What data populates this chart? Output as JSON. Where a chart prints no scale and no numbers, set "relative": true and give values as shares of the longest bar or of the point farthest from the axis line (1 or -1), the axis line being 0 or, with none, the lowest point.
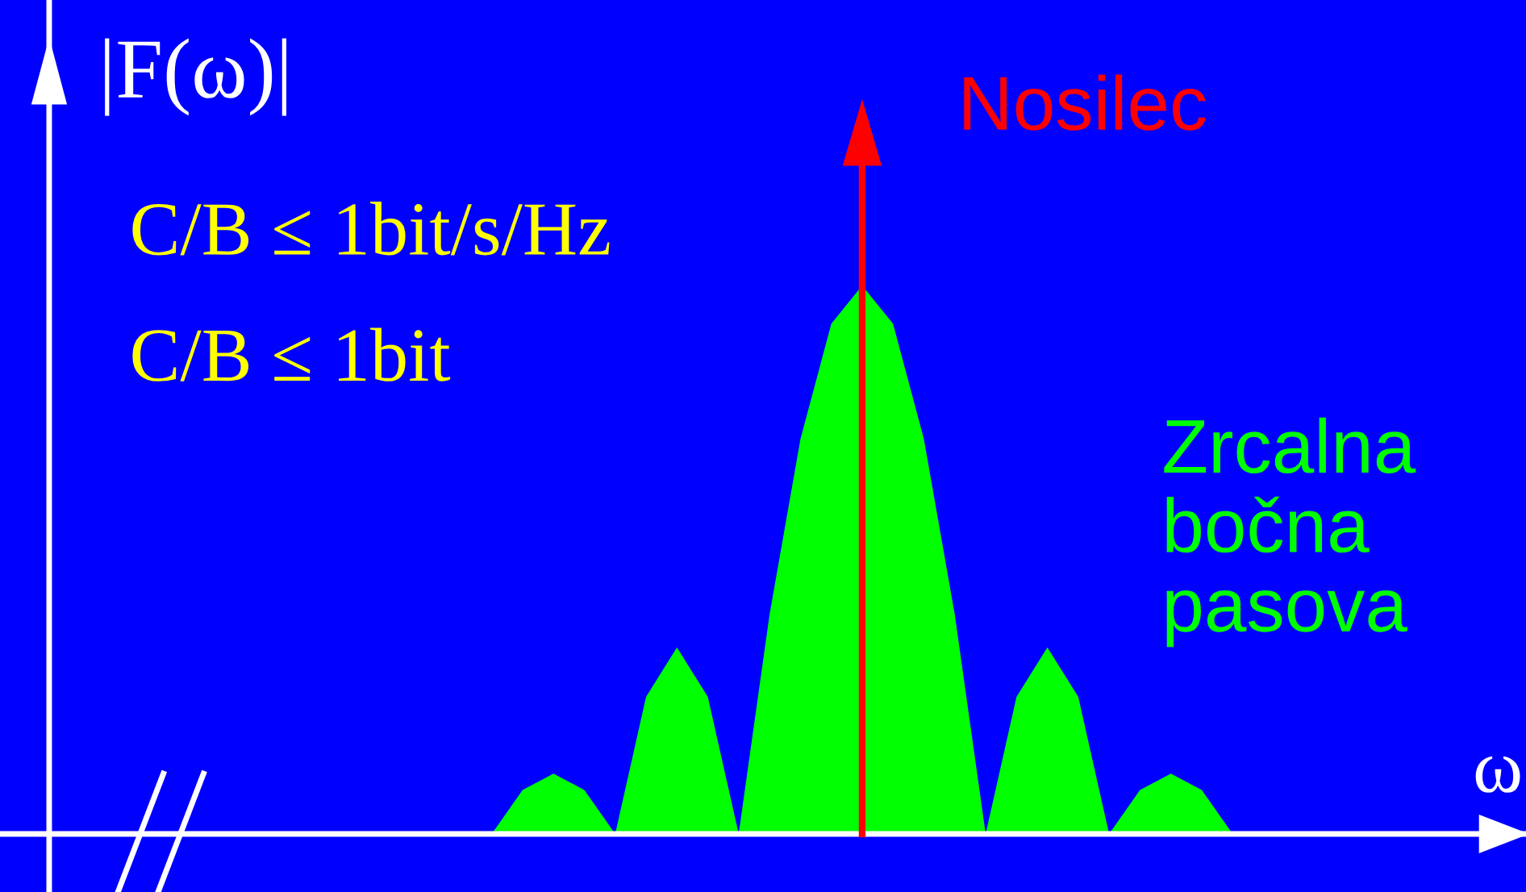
{
  "chart_data": {
    "type": "area",
    "relative": true,
    "ylabel": "|F(ω)|",
    "xlabel": "ω",
    "categories": [
      null,
      null,
      null,
      null,
      null,
      null,
      null,
      null,
      null,
      null,
      null,
      null,
      null,
      null,
      null,
      null,
      null,
      null,
      null,
      null,
      null,
      null,
      null,
      null,
      null
    ],
    "series": [
      {
        "color": "#00ff00",
        "values": [
          0,
          0.08,
          0.11,
          0.08,
          0,
          0.25,
          0.34,
          0.25,
          0,
          0.4,
          0.72,
          0.93,
          1,
          0.93,
          0.72,
          0.4,
          0,
          0.25,
          0.34,
          0.25,
          0,
          0.08,
          0.11,
          0.08,
          0
        ]
      }
    ],
    "annotations": [
      "C/B ≤ 1bit/s/Hz",
      "C/B ≤ 1bit",
      "Zrcalna\nbočna\npasova",
      "Nosilec"
    ]
  }
}
